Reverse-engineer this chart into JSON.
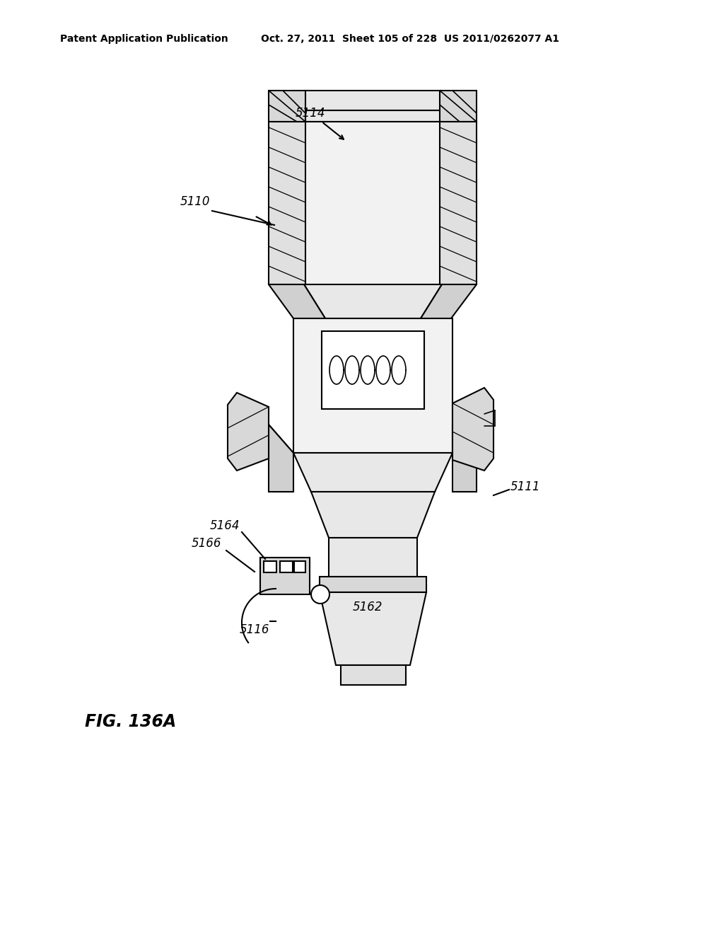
{
  "header_left": "Patent Application Publication",
  "header_right": "Oct. 27, 2011  Sheet 105 of 228  US 2011/0262077 A1",
  "fig_label": "FIG. 136A",
  "background": "#ffffff",
  "line_color": "#000000"
}
